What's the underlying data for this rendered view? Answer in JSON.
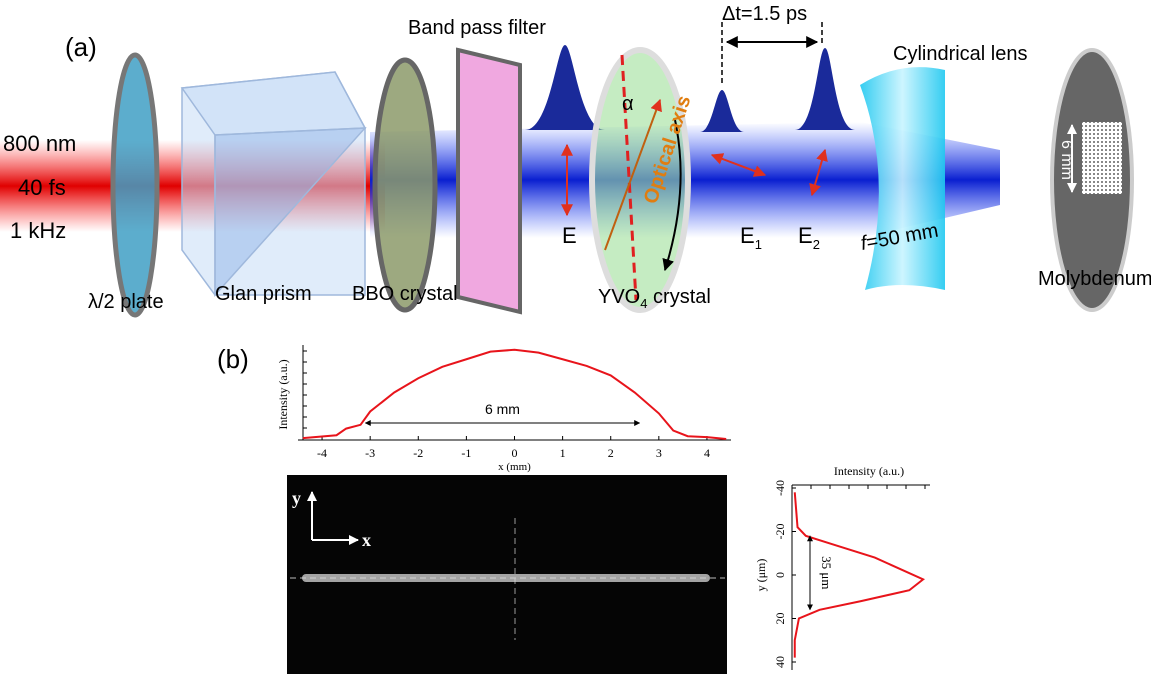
{
  "diagram": {
    "panel_label": "(a)",
    "laser": [
      "800 nm",
      "40 fs",
      "1 kHz"
    ],
    "components": {
      "half_wave_plate": "λ/2 plate",
      "glan_prism": "Glan prism",
      "bbo": "BBO crystal",
      "filter": "Band pass filter",
      "yvo4": {
        "main": "YVO",
        "sub": "4",
        "rest": " crystal"
      },
      "lens": "Cylindrical lens",
      "focal": {
        "symbol": "f",
        "rest": "=50 mm"
      },
      "target": "Molybdenum"
    },
    "fields": {
      "e": "E",
      "e1": {
        "main": "E",
        "sub": "1"
      },
      "e2": {
        "main": "E",
        "sub": "2"
      }
    },
    "alpha": "α",
    "optical_axis": "Optical axis",
    "delay": "Δt=1.5 ps",
    "beam_size": "6 mm"
  },
  "image": {
    "panel_label": "(b)",
    "y_arrow": "y",
    "x_arrow": "x"
  },
  "chart_data": [
    {
      "type": "line",
      "xlabel": "x (mm)",
      "ylabel": "Intensity (a.u.)",
      "x": [
        -4.4,
        -3.7,
        -3.5,
        -3.2,
        -3.0,
        -2.5,
        -2.0,
        -1.5,
        -1.0,
        -0.5,
        0,
        0.5,
        1.0,
        1.5,
        2.0,
        2.5,
        3.0,
        3.3,
        3.6,
        4.0,
        4.4
      ],
      "values": [
        0.02,
        0.05,
        0.12,
        0.16,
        0.3,
        0.5,
        0.65,
        0.77,
        0.85,
        0.93,
        0.95,
        0.92,
        0.85,
        0.78,
        0.68,
        0.5,
        0.28,
        0.1,
        0.04,
        0.03,
        0.01
      ],
      "color": "#e8141b",
      "xlim": [
        -4.5,
        4.5
      ],
      "xticks": [
        -4,
        -3,
        -2,
        -1,
        0,
        1,
        2,
        3,
        4
      ],
      "ylim": [
        0,
        1
      ],
      "annotation": "6 mm"
    },
    {
      "type": "line",
      "orientation": "vertical",
      "xlabel": "Intensity (a.u.)",
      "ylabel": "y (μm)",
      "y": [
        -38,
        -30,
        -22,
        -18,
        -14,
        -8,
        2,
        7,
        12,
        16,
        20,
        30,
        38
      ],
      "values": [
        0.02,
        0.03,
        0.04,
        0.1,
        0.3,
        0.6,
        0.95,
        0.85,
        0.5,
        0.2,
        0.05,
        0.02,
        0.02
      ],
      "color": "#e8141b",
      "ylim": [
        -40,
        40
      ],
      "y_inverted": true,
      "yticks": [
        -40,
        -20,
        0,
        20,
        40
      ],
      "xlim": [
        0,
        1
      ],
      "annotation": "35 μm"
    }
  ]
}
